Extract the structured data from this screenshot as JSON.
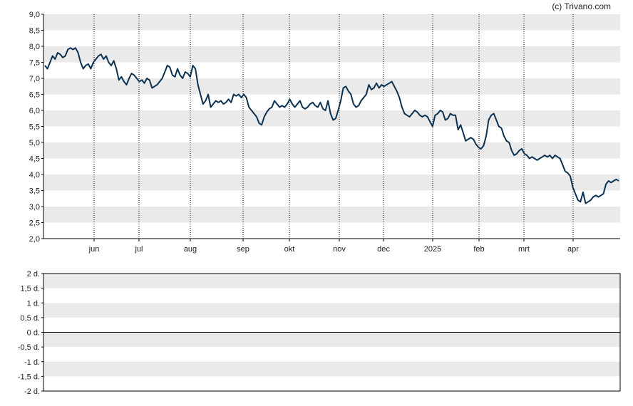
{
  "credit": "(c) Trivano.com",
  "colors": {
    "line": "#0b3252",
    "band": "#eaeaea",
    "axis": "#000000",
    "grid": "#000000"
  },
  "chart_data": [
    {
      "type": "line",
      "title": "",
      "xlabel": "",
      "ylabel": "",
      "ylim": [
        2.0,
        9.0
      ],
      "y_ticks": [
        "2,0",
        "2,5",
        "3,0",
        "3,5",
        "4,0",
        "4,5",
        "5,0",
        "5,5",
        "6,0",
        "6,5",
        "7,0",
        "7,5",
        "8,0",
        "8,5",
        "9,0"
      ],
      "x_ticks": [
        "jun",
        "jul",
        "aug",
        "sep",
        "okt",
        "nov",
        "dec",
        "2025",
        "feb",
        "mrt",
        "apr"
      ],
      "grid": "vertical dotted at month ticks; alternating horizontal bands",
      "series": [
        {
          "values": [
            7.4,
            7.3,
            7.5,
            7.7,
            7.6,
            7.8,
            7.75,
            7.65,
            7.7,
            7.9,
            7.95,
            7.9,
            7.95,
            7.8,
            7.5,
            7.3,
            7.4,
            7.45,
            7.3,
            7.5,
            7.6,
            7.7,
            7.75,
            7.6,
            7.7,
            7.5,
            7.4,
            7.55,
            7.3,
            6.95,
            7.05,
            6.9,
            6.8,
            7.0,
            7.15,
            7.1,
            7.0,
            6.9,
            6.95,
            6.85,
            7.0,
            6.95,
            6.7,
            6.75,
            6.8,
            6.9,
            7.0,
            7.2,
            7.4,
            7.35,
            7.1,
            7.05,
            7.3,
            7.1,
            7.0,
            7.2,
            7.15,
            7.05,
            7.4,
            7.3,
            6.8,
            6.5,
            6.2,
            6.3,
            6.5,
            6.1,
            6.2,
            6.3,
            6.25,
            6.3,
            6.2,
            6.25,
            6.35,
            6.25,
            6.5,
            6.45,
            6.5,
            6.4,
            6.5,
            6.4,
            6.1,
            6.0,
            5.9,
            5.8,
            5.6,
            5.55,
            5.8,
            5.95,
            6.05,
            6.1,
            6.3,
            6.2,
            6.1,
            6.15,
            6.1,
            6.2,
            6.35,
            6.2,
            6.1,
            6.2,
            6.3,
            6.1,
            6.05,
            6.1,
            6.2,
            6.25,
            6.15,
            6.1,
            6.25,
            6.05,
            6.0,
            6.3,
            5.9,
            5.7,
            5.75,
            6.0,
            6.3,
            6.7,
            6.75,
            6.6,
            6.5,
            6.2,
            6.1,
            6.15,
            6.3,
            6.4,
            6.5,
            6.8,
            6.65,
            6.7,
            6.85,
            6.7,
            6.8,
            6.75,
            6.8,
            6.85,
            6.9,
            6.75,
            6.6,
            6.4,
            6.1,
            5.9,
            5.85,
            5.8,
            5.9,
            6.0,
            5.95,
            5.85,
            5.8,
            5.85,
            5.8,
            5.65,
            5.5,
            5.85,
            5.9,
            6.0,
            5.95,
            5.7,
            5.75,
            5.9,
            5.85,
            5.85,
            5.4,
            5.55,
            5.3,
            5.05,
            5.1,
            5.15,
            5.1,
            4.95,
            4.85,
            4.8,
            4.9,
            5.2,
            5.7,
            5.85,
            5.9,
            5.7,
            5.5,
            5.45,
            5.2,
            5.05,
            5.0,
            4.75,
            4.6,
            4.65,
            4.75,
            4.8,
            4.65,
            4.6,
            4.5,
            4.55,
            4.5,
            4.45,
            4.5,
            4.55,
            4.6,
            4.55,
            4.6,
            4.5,
            4.6,
            4.55,
            4.5,
            4.3,
            4.1,
            4.05,
            3.95,
            3.6,
            3.4,
            3.2,
            3.15,
            3.45,
            3.1,
            3.15,
            3.2,
            3.3,
            3.35,
            3.3,
            3.35,
            3.4,
            3.7,
            3.8,
            3.75,
            3.8,
            3.85,
            3.8
          ]
        }
      ]
    },
    {
      "type": "line",
      "title": "",
      "xlabel": "",
      "ylabel": "",
      "ylim": [
        -2,
        2
      ],
      "y_ticks": [
        "2 d.",
        "1,5 d.",
        "1 d.",
        "0,5 d.",
        "0 d.",
        "-0,5 d.",
        "-1 d.",
        "-1,5 d.",
        "-2 d."
      ],
      "grid": "alternating horizontal bands; zero line",
      "series": []
    }
  ]
}
